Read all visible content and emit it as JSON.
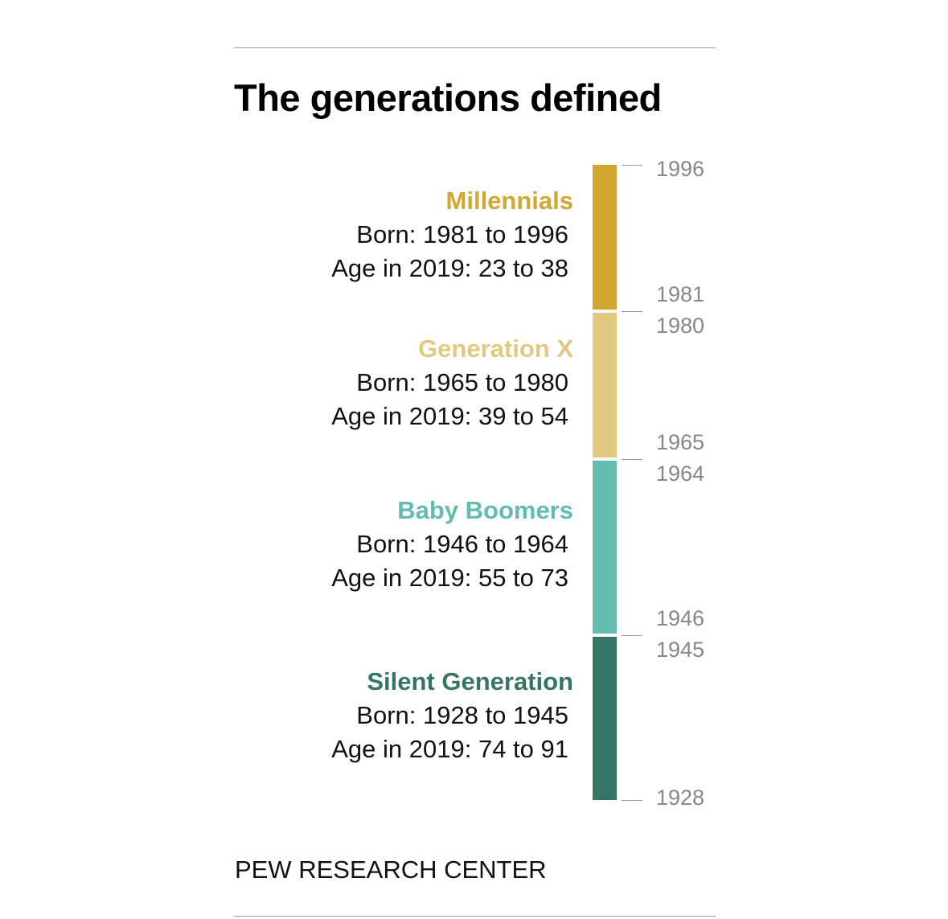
{
  "title": "The generations defined",
  "footer": "PEW RESEARCH CENTER",
  "chart_data": {
    "type": "bar",
    "orientation": "vertical-stacked-timeline",
    "title": "The generations defined",
    "reference_year": 2019,
    "series": [
      {
        "name": "Millennials",
        "born_label": "Born: 1981 to 1996",
        "age_label": "Age in 2019: 23 to 38",
        "start": 1981,
        "end": 1996,
        "color": "#D1A730",
        "start_label": "1981",
        "end_label": "1996"
      },
      {
        "name": "Generation X",
        "born_label": "Born: 1965 to 1980",
        "age_label": "Age in 2019: 39 to 54",
        "start": 1965,
        "end": 1980,
        "color": "#E2C981",
        "start_label": "1965",
        "end_label": "1980"
      },
      {
        "name": "Baby Boomers",
        "born_label": "Born: 1946 to 1964",
        "age_label": "Age in 2019: 55 to 73",
        "start": 1946,
        "end": 1964,
        "color": "#63BDAE",
        "start_label": "1946",
        "end_label": "1964"
      },
      {
        "name": "Silent Generation",
        "born_label": "Born: 1928 to 1945",
        "age_label": "Age in 2019: 74 to 91",
        "start": 1928,
        "end": 1945,
        "color": "#357565",
        "start_label": "1928",
        "end_label": "1945"
      }
    ],
    "ylim": [
      1928,
      1996
    ],
    "tick_color": "#888888",
    "grid": false,
    "legend": "none"
  }
}
